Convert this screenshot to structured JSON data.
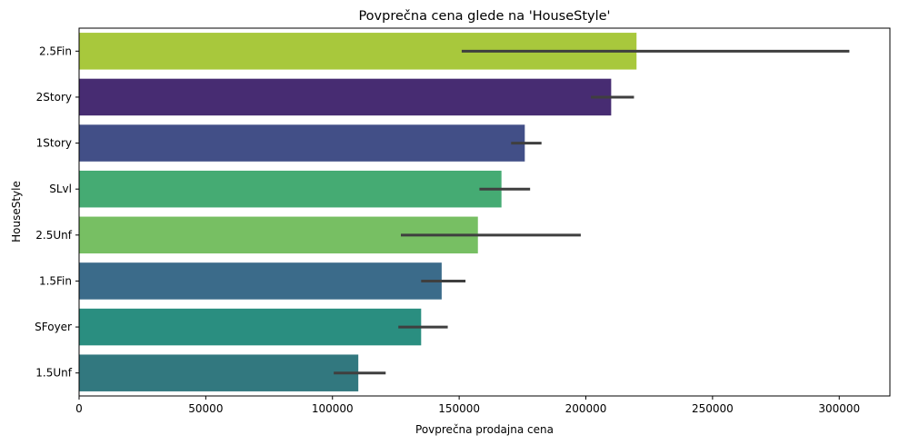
{
  "chart_data": {
    "type": "bar",
    "orientation": "horizontal",
    "title": "Povprečna cena glede na 'HouseStyle'",
    "xlabel": "Povprečna prodajna cena",
    "ylabel": "HouseStyle",
    "xlim": [
      0,
      320000
    ],
    "xticks": [
      0,
      50000,
      100000,
      150000,
      200000,
      250000,
      300000
    ],
    "xtick_labels": [
      "0",
      "50000",
      "100000",
      "150000",
      "200000",
      "250000",
      "300000"
    ],
    "grid": false,
    "legend": "none",
    "categories": [
      "2.5Fin",
      "2Story",
      "1Story",
      "SLvl",
      "2.5Unf",
      "1.5Fin",
      "SFoyer",
      "1.5Unf"
    ],
    "values": [
      220000,
      210000,
      175900,
      166700,
      157400,
      143100,
      135000,
      110200
    ],
    "error_low": [
      151000,
      202000,
      170500,
      158000,
      127000,
      135000,
      126000,
      100500
    ],
    "error_high": [
      304000,
      219000,
      182500,
      178000,
      198000,
      152500,
      145500,
      121000
    ],
    "colors": [
      "#a8c83c",
      "#472c72",
      "#424f87",
      "#45ab73",
      "#77bf63",
      "#3b6b8a",
      "#2a8e80",
      "#32787f"
    ],
    "error_color": "#3f3f3f"
  }
}
